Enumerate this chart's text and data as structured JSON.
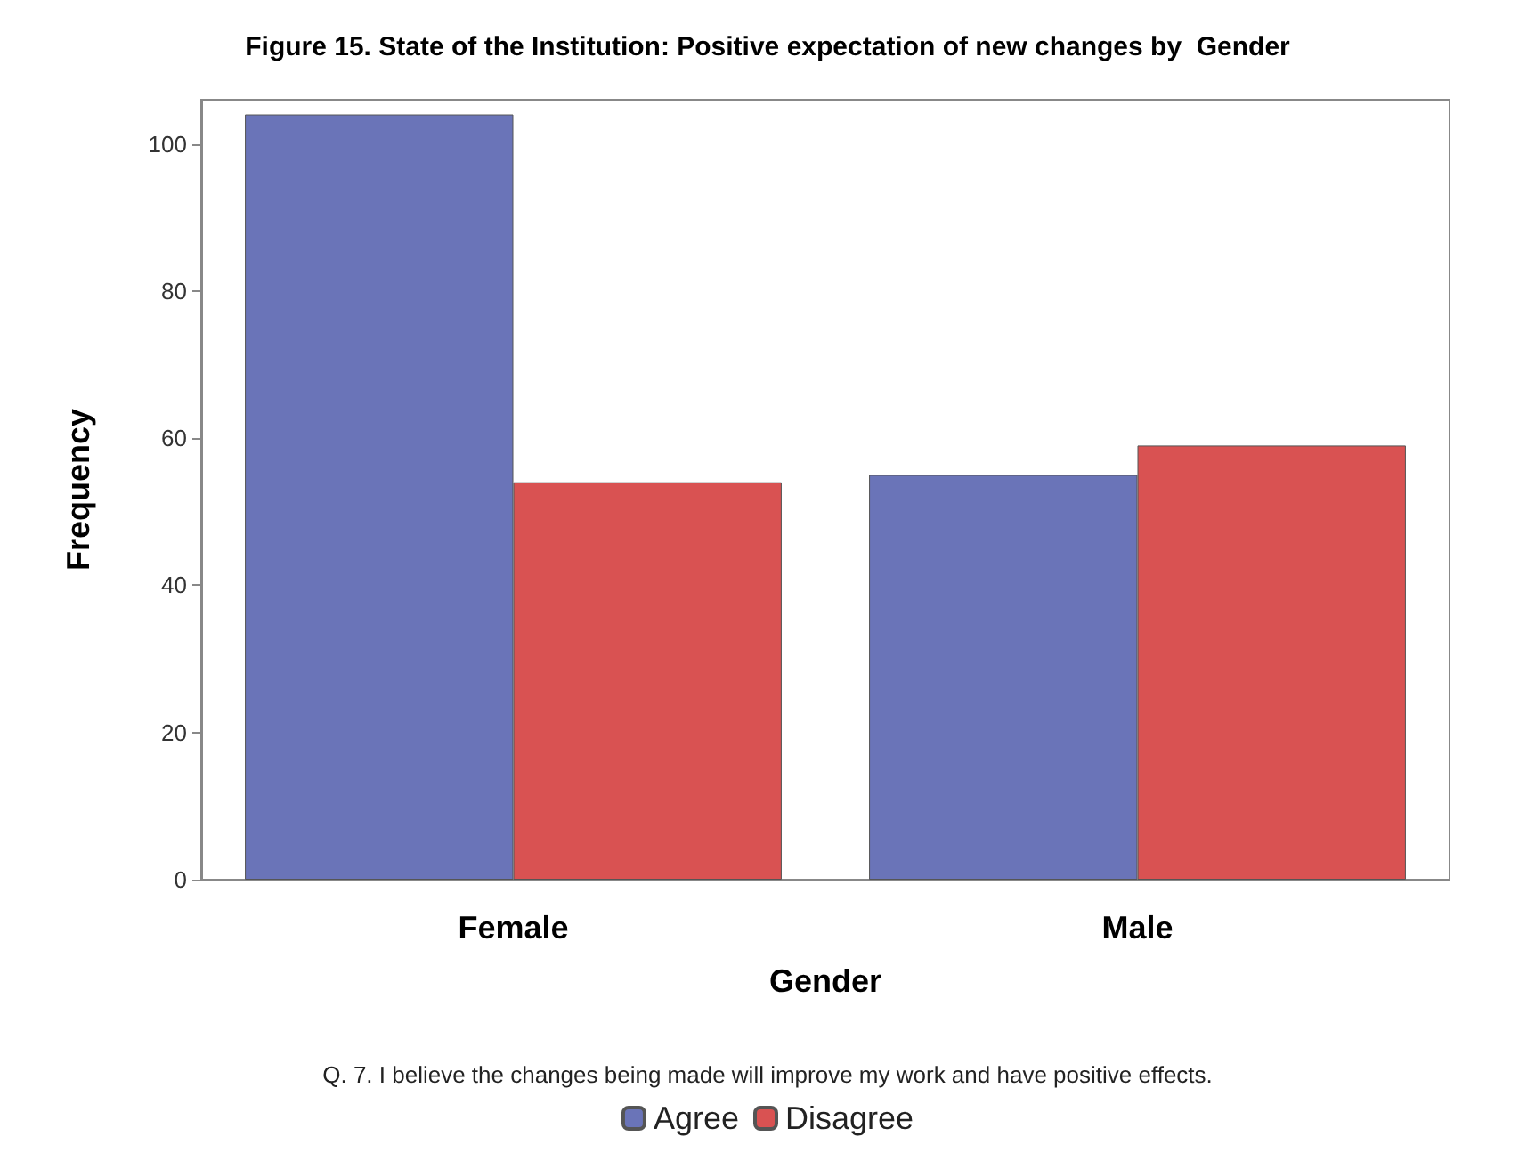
{
  "chart_data": {
    "type": "bar",
    "title": "Figure 15. State of the Institution: Positive expectation of new changes by  Gender",
    "xlabel": "Gender",
    "ylabel": "Frequency",
    "categories": [
      "Female",
      "Male"
    ],
    "series": [
      {
        "name": "Agree",
        "color": "#6a74b8",
        "values": [
          104,
          55
        ]
      },
      {
        "name": "Disagree",
        "color": "#d95252",
        "values": [
          54,
          59
        ]
      }
    ],
    "ylim": [
      0,
      106
    ],
    "yticks": [
      0,
      20,
      40,
      60,
      80,
      100
    ],
    "grid": false,
    "legend": "bottom",
    "annotations": [
      "Q. 7. I believe the changes being made will improve my work and have positive effects."
    ]
  }
}
